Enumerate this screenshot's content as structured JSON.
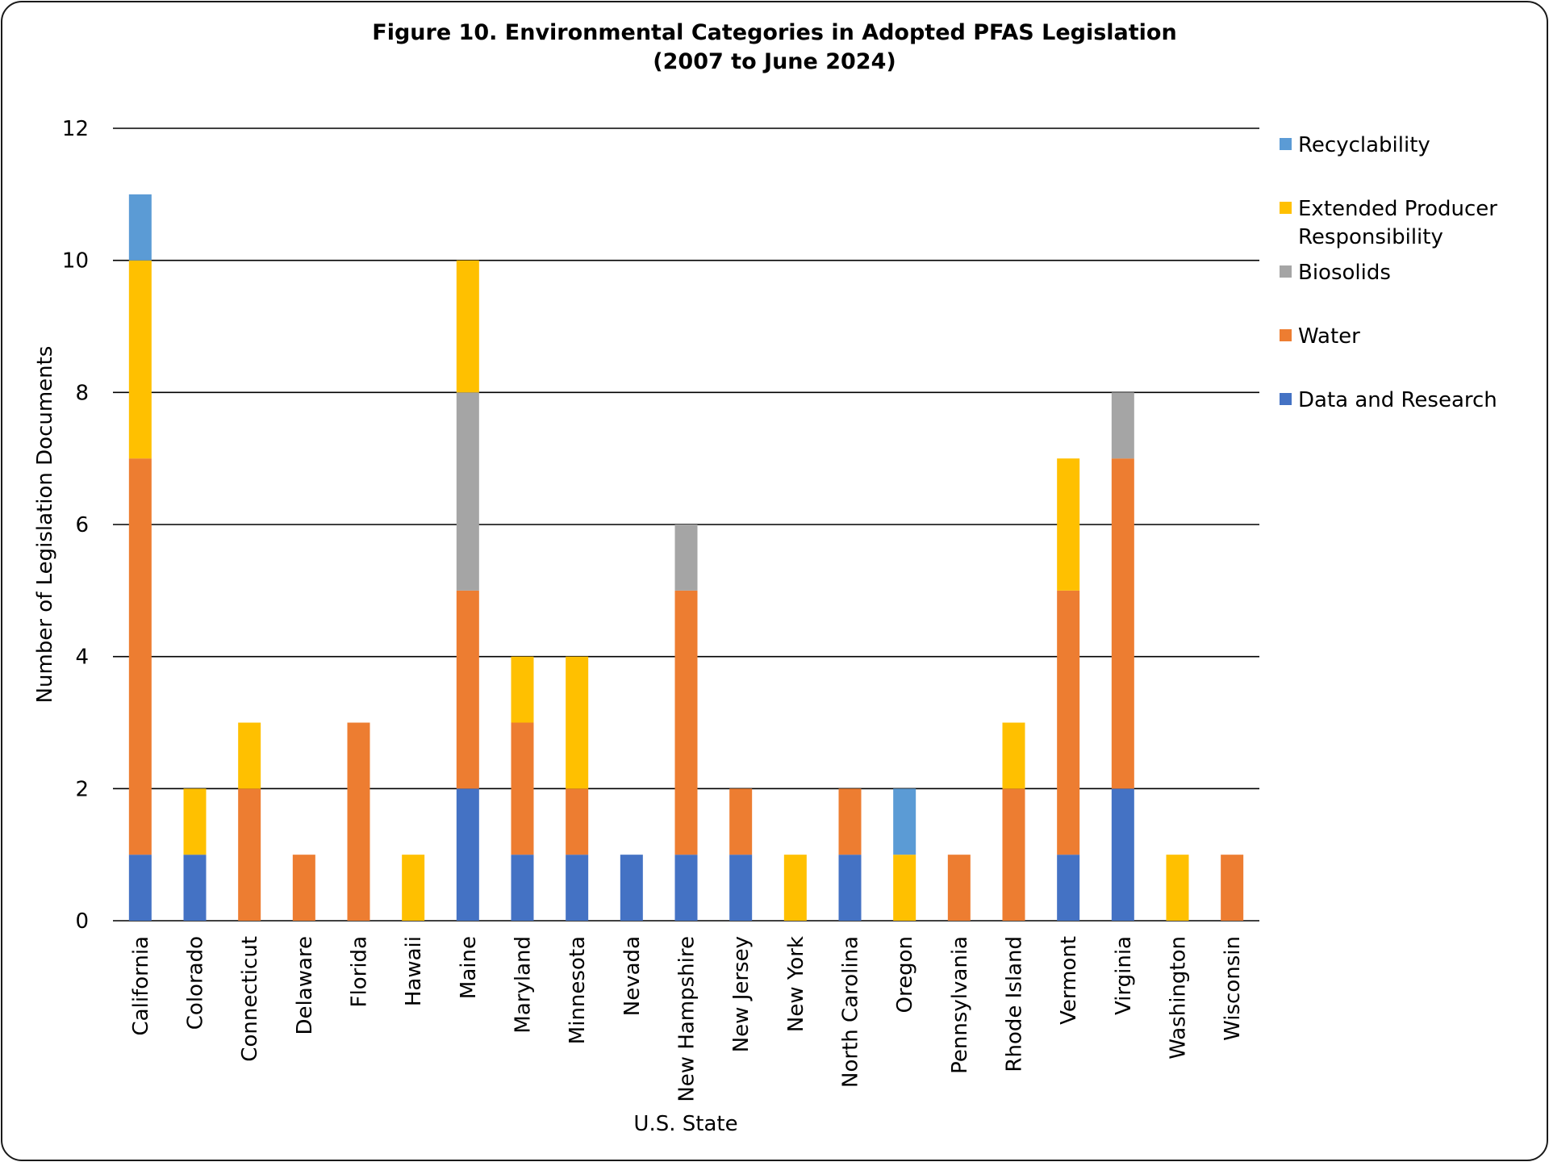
{
  "chart_data": {
    "type": "bar",
    "stacked": true,
    "title": "Figure 10. Environmental Categories in Adopted PFAS Legislation",
    "subtitle": "(2007 to June 2024)",
    "xlabel": "U.S. State",
    "ylabel": "Number of Legislation Documents",
    "ylim": [
      0,
      12
    ],
    "yticks": [
      0,
      2,
      4,
      6,
      8,
      10,
      12
    ],
    "grid": true,
    "legend_position": "right",
    "categories": [
      "California",
      "Colorado",
      "Connecticut",
      "Delaware",
      "Florida",
      "Hawaii",
      "Maine",
      "Maryland",
      "Minnesota",
      "Nevada",
      "New Hampshire",
      "New Jersey",
      "New York",
      "North Carolina",
      "Oregon",
      "Pennsylvania",
      "Rhode Island",
      "Vermont",
      "Virginia",
      "Washington",
      "Wisconsin"
    ],
    "series": [
      {
        "name": "Data and Research",
        "color": "#4472C4",
        "values": [
          1,
          1,
          0,
          0,
          0,
          0,
          2,
          1,
          1,
          1,
          1,
          1,
          0,
          1,
          0,
          0,
          0,
          1,
          2,
          0,
          0
        ]
      },
      {
        "name": "Water",
        "color": "#ED7D31",
        "values": [
          6,
          0,
          2,
          1,
          3,
          0,
          3,
          2,
          1,
          0,
          4,
          1,
          0,
          1,
          0,
          1,
          2,
          4,
          5,
          0,
          1
        ]
      },
      {
        "name": "Biosolids",
        "color": "#A5A5A5",
        "values": [
          0,
          0,
          0,
          0,
          0,
          0,
          3,
          0,
          0,
          0,
          1,
          0,
          0,
          0,
          0,
          0,
          0,
          0,
          1,
          0,
          0
        ]
      },
      {
        "name": "Extended Producer Responsibility",
        "color": "#FFC000",
        "values": [
          3,
          1,
          1,
          0,
          0,
          1,
          2,
          1,
          2,
          0,
          0,
          0,
          1,
          0,
          1,
          0,
          1,
          2,
          0,
          1,
          0
        ]
      },
      {
        "name": "Recyclability",
        "color": "#5B9BD5",
        "values": [
          1,
          0,
          0,
          0,
          0,
          0,
          0,
          0,
          0,
          0,
          0,
          0,
          0,
          0,
          1,
          0,
          0,
          0,
          0,
          0,
          0
        ]
      }
    ],
    "legend_order": [
      "Recyclability",
      "Extended Producer Responsibility",
      "Biosolids",
      "Water",
      "Data and Research"
    ],
    "legend_labels": {
      "Recyclability": [
        "Recyclability"
      ],
      "Extended Producer Responsibility": [
        "Extended Producer",
        "Responsibility"
      ],
      "Biosolids": [
        "Biosolids"
      ],
      "Water": [
        "Water"
      ],
      "Data and Research": [
        "Data and Research"
      ]
    }
  }
}
